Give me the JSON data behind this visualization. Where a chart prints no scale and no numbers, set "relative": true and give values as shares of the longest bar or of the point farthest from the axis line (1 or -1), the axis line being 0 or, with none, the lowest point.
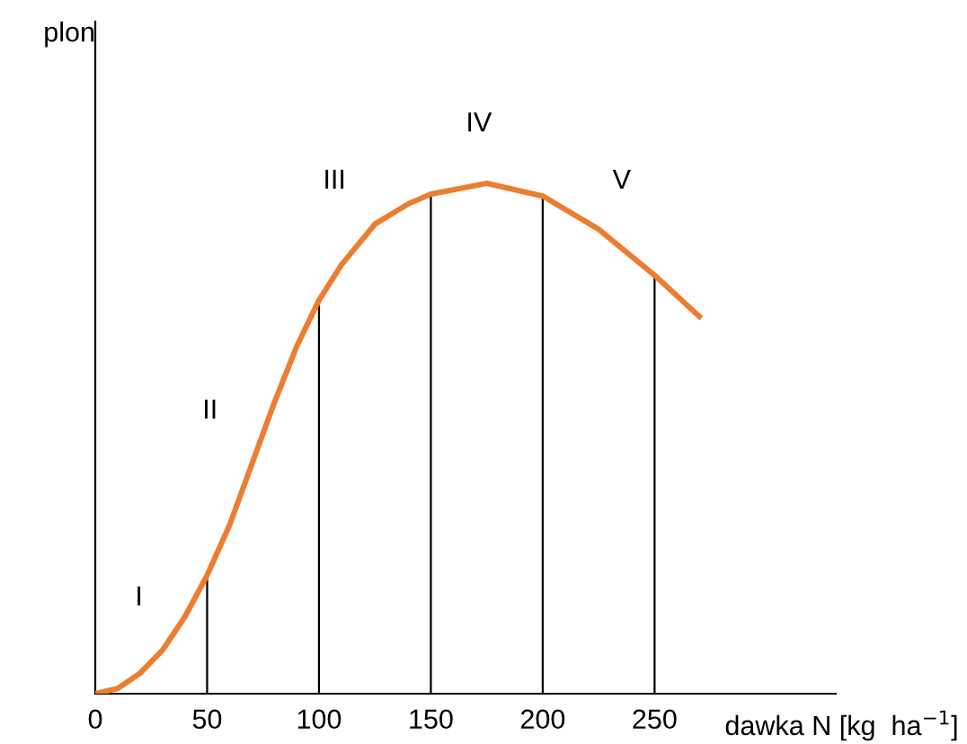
{
  "chart_data": {
    "type": "line",
    "relative": true,
    "ylabel": "plon",
    "xlabel": "dawka N [kg  ha$^{−1}$]",
    "xlim": [
      0,
      331
    ],
    "xticks": [
      0,
      50,
      100,
      150,
      200,
      250
    ],
    "legend": false,
    "marker": "none",
    "line_style": "solid",
    "tick_labels": "x",
    "series": [
      {
        "color": "#ed7d31",
        "x": [
          0,
          10,
          20,
          30,
          40,
          50,
          60,
          70,
          80,
          90,
          100,
          110,
          125,
          140,
          150,
          175,
          200,
          225,
          250,
          270
        ],
        "values": [
          0,
          0.01,
          0.04,
          0.085,
          0.15,
          0.232,
          0.33,
          0.45,
          0.57,
          0.68,
          0.771,
          0.84,
          0.92,
          0.96,
          0.979,
          1.0,
          0.975,
          0.91,
          0.82,
          0.739
        ]
      },
      {
        "type": "bar",
        "color": "#000000",
        "x": [
          50,
          100,
          150,
          200,
          250
        ],
        "values": [
          0.232,
          0.771,
          0.979,
          0.975,
          0.82
        ]
      }
    ],
    "annotations": [
      "I",
      "II",
      "III",
      "IV",
      "V"
    ]
  }
}
